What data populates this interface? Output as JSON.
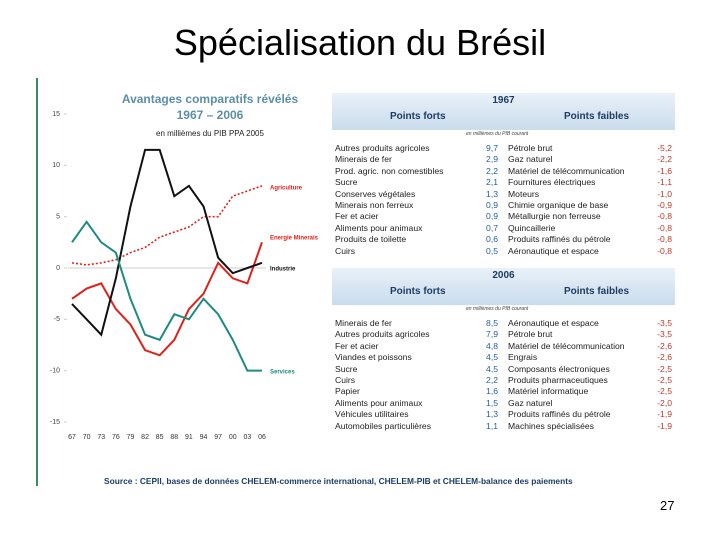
{
  "slide_title": "Spécialisation du Brésil",
  "chart_data": {
    "type": "line",
    "title": "Avantages comparatifs révélés",
    "subtitle": "1967 – 2006",
    "note": "en millièmes du PIB PPA 2005",
    "categories": [
      "67",
      "70",
      "73",
      "76",
      "79",
      "82",
      "85",
      "88",
      "91",
      "94",
      "97",
      "00",
      "03",
      "06"
    ],
    "ylim": [
      -15,
      15
    ],
    "yticks": [
      15,
      10,
      5,
      0,
      -5,
      -10,
      -15
    ],
    "series": [
      {
        "name": "Agriculture",
        "color": "#e0201b",
        "dashed": true,
        "values": [
          0.5,
          0.3,
          0.5,
          0.8,
          1.5,
          2,
          3,
          3.5,
          4,
          5,
          5,
          7,
          7.5,
          8
        ]
      },
      {
        "name": "Energie Minerais",
        "color": "#e0201b",
        "values": [
          -3,
          -2,
          -1.5,
          -4,
          -5.5,
          -8,
          -8.5,
          -7,
          -4,
          -2.5,
          0.5,
          -1,
          -1.5,
          2.5
        ]
      },
      {
        "name": "Industrie",
        "color": "#111111",
        "values": [
          -3.5,
          -5,
          -6.5,
          -1,
          6,
          11.5,
          11.5,
          7,
          8,
          6,
          1,
          -0.5,
          0,
          0.5
        ]
      },
      {
        "name": "Services",
        "color": "#1f8a80",
        "values": [
          2.5,
          4.5,
          2.5,
          1.5,
          -3,
          -6.5,
          -7,
          -4.5,
          -5,
          -3,
          -4.5,
          -7,
          -10,
          -10
        ]
      }
    ]
  },
  "tables": [
    {
      "year": "1967",
      "strong_header": "Points forts",
      "weak_header": "Points faibles",
      "note": "en millièmes du PIB courant",
      "rows": [
        [
          "Autres produits agricoles",
          "9,7",
          "Pétrole brut",
          "-5,2"
        ],
        [
          "Minerais de fer",
          "2,9",
          "Gaz naturel",
          "-2,2"
        ],
        [
          "Prod. agric. non comestibles",
          "2,2",
          "Matériel de télécommunication",
          "-1,6"
        ],
        [
          "Sucre",
          "2,1",
          "Fournitures électriques",
          "-1,1"
        ],
        [
          "Conserves végétales",
          "1,3",
          "Moteurs",
          "-1,0"
        ],
        [
          "Minerais non ferreux",
          "0,9",
          "Chimie organique de base",
          "-0,9"
        ],
        [
          "Fer et acier",
          "0,9",
          "Métallurgie non ferreuse",
          "-0,8"
        ],
        [
          "Aliments pour animaux",
          "0,7",
          "Quincaillerie",
          "-0,8"
        ],
        [
          "Produits de toilette",
          "0,6",
          "Produits raffinés du pétrole",
          "-0,8"
        ],
        [
          "Cuirs",
          "0,5",
          "Aéronautique et espace",
          "-0,8"
        ]
      ]
    },
    {
      "year": "2006",
      "strong_header": "Points forts",
      "weak_header": "Points faibles",
      "note": "en millièmes du PIB courant",
      "rows": [
        [
          "Minerais de fer",
          "8,5",
          "Aéronautique et espace",
          "-3,5"
        ],
        [
          "Autres produits agricoles",
          "7,9",
          "Pétrole brut",
          "-3,5"
        ],
        [
          "Fer et acier",
          "4,8",
          "Matériel de télécommunication",
          "-2,6"
        ],
        [
          "Viandes et poissons",
          "4,5",
          "Engrais",
          "-2,6"
        ],
        [
          "Sucre",
          "4,5",
          "Composants électroniques",
          "-2,5"
        ],
        [
          "Cuirs",
          "2,2",
          "Produits pharmaceutiques",
          "-2,5"
        ],
        [
          "Papier",
          "1,6",
          "Matériel informatique",
          "-2,5"
        ],
        [
          "Aliments pour animaux",
          "1,5",
          "Gaz naturel",
          "-2,0"
        ],
        [
          "Véhicules utilitaires",
          "1,3",
          "Produits raffinés du pétrole",
          "-1,9"
        ],
        [
          "Automobiles particulières",
          "1,1",
          "Machines spécialisées",
          "-1,9"
        ]
      ]
    }
  ],
  "source": "Source : CEPII, bases de données CHELEM-commerce international, CHELEM-PIB et CHELEM-balance des paiements",
  "page_number": "27"
}
